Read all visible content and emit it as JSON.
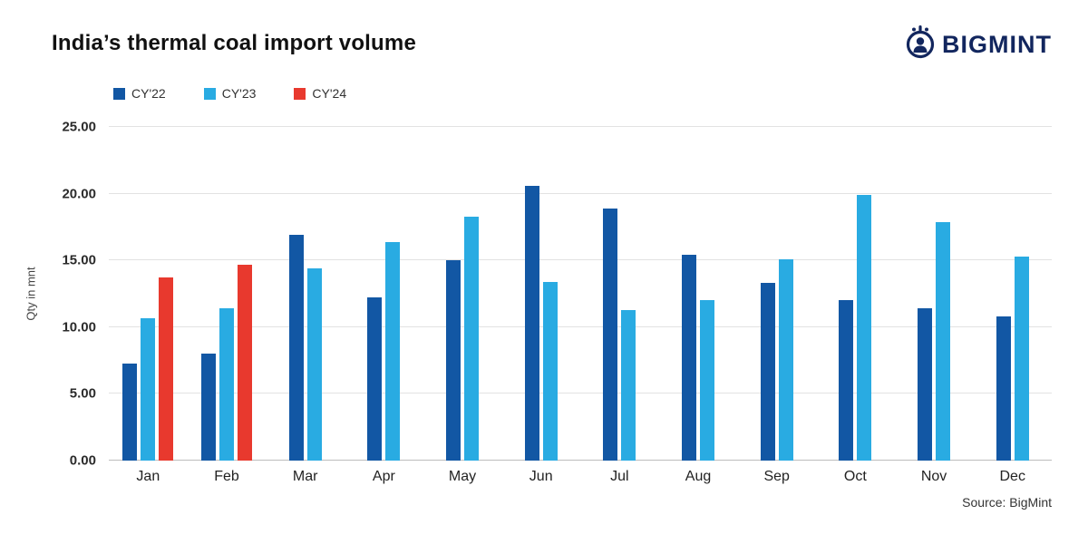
{
  "header": {
    "title": "India’s thermal coal import volume",
    "brand": "BIGMINT",
    "brand_color": "#12265e"
  },
  "footer": {
    "source": "Source: BigMint"
  },
  "chart_data": {
    "type": "bar",
    "title": "India’s thermal coal import volume",
    "xlabel": "",
    "ylabel": "Qty in mnt",
    "ylim": [
      0,
      25
    ],
    "yticks": [
      0,
      5,
      10,
      15,
      20,
      25
    ],
    "ytick_labels": [
      "0.00",
      "5.00",
      "10.00",
      "15.00",
      "20.00",
      "25.00"
    ],
    "grid": "horizontal",
    "legend_position": "top-left",
    "categories": [
      "Jan",
      "Feb",
      "Mar",
      "Apr",
      "May",
      "Jun",
      "Jul",
      "Aug",
      "Sep",
      "Oct",
      "Nov",
      "Dec"
    ],
    "series": [
      {
        "name": "CY'22",
        "color": "#1257a4",
        "values": [
          7.3,
          8.0,
          16.9,
          12.2,
          15.0,
          20.6,
          18.9,
          15.4,
          13.3,
          12.0,
          11.4,
          10.8
        ]
      },
      {
        "name": "CY'23",
        "color": "#29abe2",
        "values": [
          10.7,
          11.4,
          14.4,
          16.4,
          18.3,
          13.4,
          11.3,
          12.0,
          15.1,
          19.9,
          17.9,
          15.3
        ]
      },
      {
        "name": "CY'24",
        "color": "#e8392e",
        "values": [
          13.7,
          14.7,
          null,
          null,
          null,
          null,
          null,
          null,
          null,
          null,
          null,
          null
        ]
      }
    ]
  }
}
